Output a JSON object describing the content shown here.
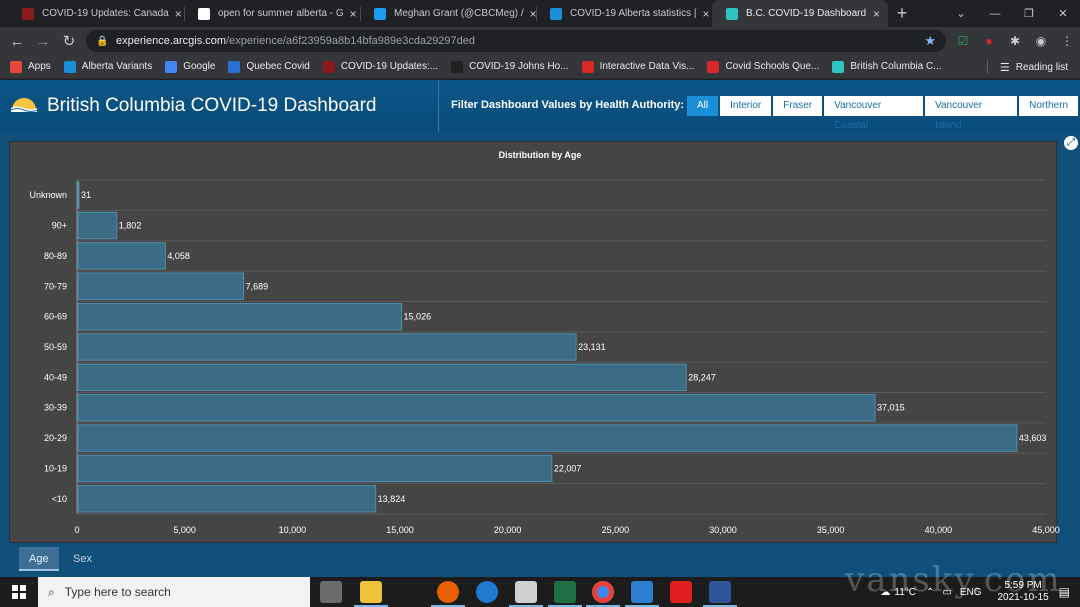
{
  "browser": {
    "tabs": [
      {
        "title": "COVID-19 Updates: Canada",
        "color": "#8b1a1a",
        "active": false
      },
      {
        "title": "open for summer alberta - G",
        "color": "#ffffff",
        "active": false
      },
      {
        "title": "Meghan Grant (@CBCMeg) /",
        "color": "#1d9bf0",
        "active": false
      },
      {
        "title": "COVID-19 Alberta statistics |",
        "color": "#1a8fd8",
        "active": false
      },
      {
        "title": "B.C. COVID-19 Dashboard",
        "color": "#2ec4c4",
        "active": true
      }
    ],
    "close_glyph": "×",
    "newtab_glyph": "+",
    "url_host": "experience.arcgis.com",
    "url_path": "/experience/a6f23959a8b14bfa989e3cda29297ded",
    "bookmarks": [
      {
        "label": "Apps",
        "color": "#e8453c"
      },
      {
        "label": "Alberta Variants",
        "color": "#1a8fd8"
      },
      {
        "label": "Google",
        "color": "#4285f4"
      },
      {
        "label": "Quebec Covid",
        "color": "#2a6fd6"
      },
      {
        "label": "COVID-19 Updates:...",
        "color": "#8b1a1a"
      },
      {
        "label": "COVID-19 Johns Ho...",
        "color": "#222222"
      },
      {
        "label": "Interactive Data Vis...",
        "color": "#d62828"
      },
      {
        "label": "Covid Schools Que...",
        "color": "#d62828"
      },
      {
        "label": "British Columbia C...",
        "color": "#2ec4c4"
      }
    ],
    "reading_list": "Reading list"
  },
  "dashboard": {
    "title": "British Columbia COVID-19 Dashboard",
    "filter_label": "Filter Dashboard Values by Health Authority:",
    "filters": [
      {
        "label": "All",
        "active": true
      },
      {
        "label": "Interior",
        "active": false
      },
      {
        "label": "Fraser",
        "active": false
      },
      {
        "label": "Vancouver Coastal",
        "active": false
      },
      {
        "label": "Vancouver Island",
        "active": false
      },
      {
        "label": "Northern",
        "active": false
      }
    ],
    "bottom_tabs": [
      {
        "label": "Age",
        "active": true
      },
      {
        "label": "Sex",
        "active": false
      }
    ]
  },
  "chart_data": {
    "type": "bar",
    "orientation": "horizontal",
    "title": "Distribution by Age",
    "categories": [
      "Unknown",
      "90+",
      "80-89",
      "70-79",
      "60-69",
      "50-59",
      "40-49",
      "30-39",
      "20-29",
      "10-19",
      "<10"
    ],
    "values": [
      31,
      1802,
      4058,
      7689,
      15026,
      23131,
      28247,
      37015,
      43603,
      22007,
      13824
    ],
    "value_labels": [
      "31",
      "1,802",
      "4,058",
      "7,689",
      "15,026",
      "23,131",
      "28,247",
      "37,015",
      "43,603",
      "22,007",
      "13,824"
    ],
    "xlim": [
      0,
      45000
    ],
    "xticks": [
      0,
      5000,
      10000,
      15000,
      20000,
      25000,
      30000,
      35000,
      40000,
      45000
    ],
    "xtick_labels": [
      "0",
      "5,000",
      "10,000",
      "15,000",
      "20,000",
      "25,000",
      "30,000",
      "35,000",
      "40,000",
      "45,000"
    ],
    "grid": true,
    "bar_color": "#3b6b85",
    "bar_border": "#4f8eae"
  },
  "taskbar": {
    "search_placeholder": "Type here to search",
    "weather": "11°C",
    "language": "ENG",
    "time": "5:59 PM",
    "date": "2021-10-15"
  },
  "watermark": "vansky.com"
}
